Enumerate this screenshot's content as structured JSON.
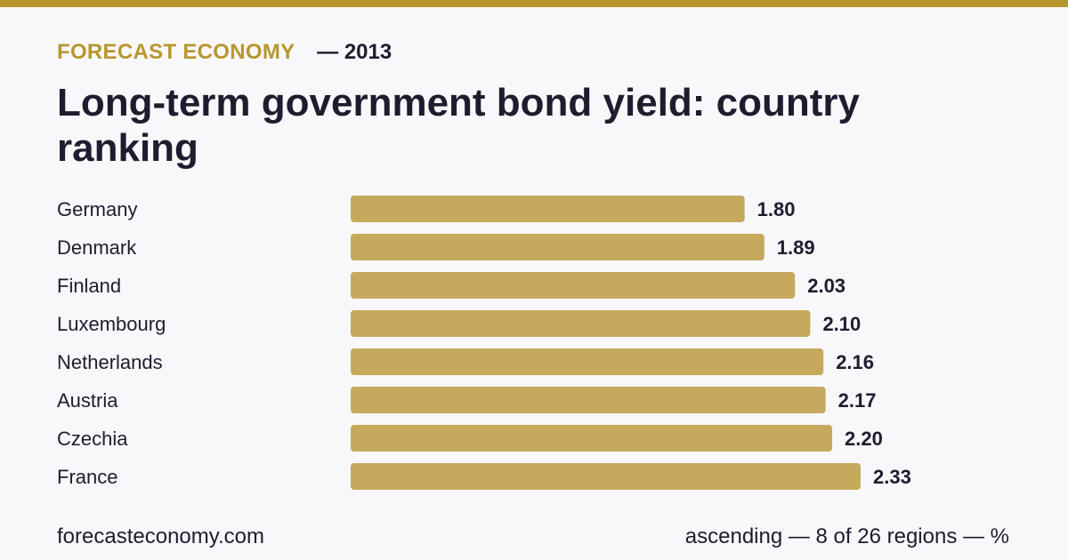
{
  "header": {
    "brand": "FORECAST ECONOMY",
    "year": "— 2013",
    "title": "Long-term government bond yield: country ranking"
  },
  "footer": {
    "site": "forecasteconomy.com",
    "note": "ascending — 8 of 26 regions — %"
  },
  "colors": {
    "accent": "#b8962e",
    "bar": "#c6a95d",
    "text": "#1d1d2f",
    "background": "#f8f8fa"
  },
  "chart_data": {
    "type": "bar",
    "orientation": "horizontal",
    "title": "Long-term government bond yield: country ranking",
    "categories": [
      "Germany",
      "Denmark",
      "Finland",
      "Luxembourg",
      "Netherlands",
      "Austria",
      "Czechia",
      "France"
    ],
    "values": [
      1.8,
      1.89,
      2.03,
      2.1,
      2.16,
      2.17,
      2.2,
      2.33
    ],
    "value_labels": [
      "1.80",
      "1.89",
      "2.03",
      "2.10",
      "2.16",
      "2.17",
      "2.20",
      "2.33"
    ],
    "unit": "%",
    "xlim": [
      0,
      2.33
    ],
    "grid": false,
    "legend": "none"
  }
}
